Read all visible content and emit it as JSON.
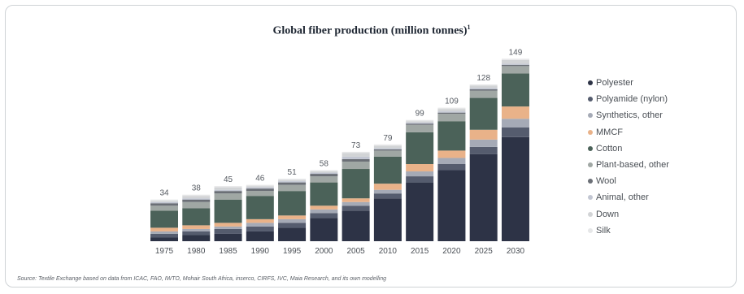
{
  "title": "Global fiber production (million tonnes)",
  "title_sup": "1",
  "source": "Source: Textile Exchange based on data from ICAC, FAO, IWTO, Mohair South Africa, inserco, CIRFS, IVC, Maia Research, and its own modelling",
  "chart_data": {
    "type": "bar",
    "stacked": true,
    "categories": [
      "1975",
      "1980",
      "1985",
      "1990",
      "1995",
      "2000",
      "2005",
      "2010",
      "2015",
      "2020",
      "2025",
      "2030"
    ],
    "totals": [
      34,
      38,
      45,
      46,
      51,
      58,
      73,
      79,
      99,
      109,
      128,
      149
    ],
    "legend_position": "right",
    "series": [
      {
        "name": "Polyester",
        "color": "#2d3346",
        "values": [
          3,
          5,
          6,
          8,
          11,
          19,
          25,
          35,
          48,
          58,
          71,
          85
        ]
      },
      {
        "name": "Polyamide (nylon)",
        "color": "#555c6e",
        "values": [
          3,
          3,
          4,
          4,
          4,
          4,
          4,
          4,
          5,
          5,
          6,
          8
        ]
      },
      {
        "name": "Synthetics, other",
        "color": "#a5aab6",
        "values": [
          2,
          2,
          2,
          3,
          3,
          3,
          3,
          3,
          4,
          5,
          6,
          7
        ]
      },
      {
        "name": "MMCF",
        "color": "#e9b289",
        "values": [
          3,
          3,
          3,
          3,
          3,
          3,
          3,
          5,
          6,
          6,
          8,
          10
        ]
      },
      {
        "name": "Cotton",
        "color": "#4b6259",
        "values": [
          14,
          14,
          19,
          19,
          20,
          19,
          24,
          22,
          26,
          24,
          26,
          27
        ]
      },
      {
        "name": "Plant-based, other",
        "color": "#a0a7a4",
        "values": [
          4,
          5,
          5,
          4,
          5,
          5,
          6,
          5,
          6,
          6,
          6,
          6
        ]
      },
      {
        "name": "Wool",
        "color": "#6b6f76",
        "values": [
          2,
          2,
          2,
          2,
          2,
          2,
          2,
          1,
          1,
          1,
          1,
          1
        ]
      },
      {
        "name": "Animal, other",
        "color": "#c2c6d2",
        "values": [
          1,
          1,
          1,
          1,
          1,
          1,
          2,
          1,
          1,
          1,
          1,
          1
        ]
      },
      {
        "name": "Down",
        "color": "#d2d4d6",
        "values": [
          1,
          2,
          2,
          1,
          1,
          1,
          3,
          2,
          1,
          2,
          2,
          3
        ]
      },
      {
        "name": "Silk",
        "color": "#e6e7e8",
        "values": [
          1,
          1,
          1,
          1,
          1,
          1,
          1,
          1,
          1,
          1,
          1,
          1
        ]
      }
    ]
  }
}
